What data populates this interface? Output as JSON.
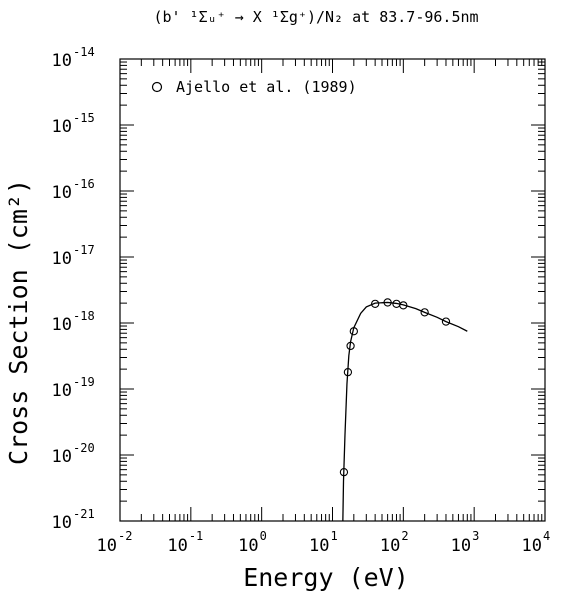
{
  "chart_data": {
    "type": "scatter",
    "title": "(b' ¹Σᵤ⁺ → X ¹Σg⁺)/N₂ at 83.7-96.5nm",
    "xlabel": "Energy (eV)",
    "ylabel": "Cross Section (cm²)",
    "x_scale": "log",
    "y_scale": "log",
    "xlim": [
      0.01,
      10000
    ],
    "ylim": [
      1e-21,
      1e-14
    ],
    "x_ticks": [
      {
        "value": 0.01,
        "base": "10",
        "exp": "-2"
      },
      {
        "value": 0.1,
        "base": "10",
        "exp": "-1"
      },
      {
        "value": 1,
        "base": "10",
        "exp": "0"
      },
      {
        "value": 10,
        "base": "10",
        "exp": "1"
      },
      {
        "value": 100,
        "base": "10",
        "exp": "2"
      },
      {
        "value": 1000,
        "base": "10",
        "exp": "3"
      },
      {
        "value": 10000,
        "base": "10",
        "exp": "4"
      }
    ],
    "y_ticks": [
      {
        "value": 1e-21,
        "base": "10",
        "exp": "-21"
      },
      {
        "value": 1e-20,
        "base": "10",
        "exp": "-20"
      },
      {
        "value": 1e-19,
        "base": "10",
        "exp": "-19"
      },
      {
        "value": 1e-18,
        "base": "10",
        "exp": "-18"
      },
      {
        "value": 1e-17,
        "base": "10",
        "exp": "-17"
      },
      {
        "value": 1e-16,
        "base": "10",
        "exp": "-16"
      },
      {
        "value": 1e-15,
        "base": "10",
        "exp": "-15"
      },
      {
        "value": 1e-14,
        "base": "10",
        "exp": "-14"
      }
    ],
    "legend": {
      "position": "top-left",
      "label": "Ajello et al. (1989)",
      "marker": "circle"
    },
    "grid": false,
    "series": [
      {
        "name": "Ajello et al. (1989)",
        "kind": "points",
        "marker": "circle",
        "x": [
          14.5,
          16.5,
          18.0,
          20.0,
          40,
          60,
          80,
          100,
          200,
          400
        ],
        "y": [
          5.5e-21,
          1.8e-19,
          4.5e-19,
          7.5e-19,
          1.95e-18,
          2.05e-18,
          1.95e-18,
          1.85e-18,
          1.45e-18,
          1.05e-18
        ]
      },
      {
        "kind": "line",
        "x": [
          14.0,
          14.3,
          15.0,
          16.0,
          17.0,
          18.0,
          20.0,
          25,
          30,
          40,
          60,
          80,
          100,
          150,
          200,
          300,
          400,
          600,
          800
        ],
        "y": [
          1e-21,
          4e-21,
          2e-20,
          1.2e-19,
          3.2e-19,
          5.2e-19,
          8.5e-19,
          1.4e-18,
          1.75e-18,
          2e-18,
          2.05e-18,
          1.98e-18,
          1.88e-18,
          1.65e-18,
          1.45e-18,
          1.22e-18,
          1.05e-18,
          8.8e-19,
          7.5e-19
        ]
      }
    ]
  }
}
